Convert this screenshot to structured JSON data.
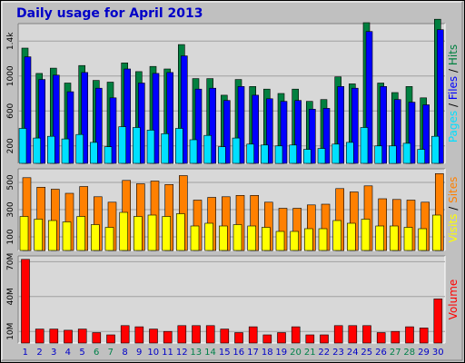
{
  "chart_data": {
    "type": "bar",
    "title": "Daily usage for April 2013",
    "categories": [
      "1",
      "2",
      "3",
      "4",
      "5",
      "6",
      "7",
      "8",
      "9",
      "10",
      "11",
      "12",
      "13",
      "14",
      "15",
      "16",
      "17",
      "18",
      "19",
      "20",
      "21",
      "22",
      "23",
      "24",
      "25",
      "26",
      "27",
      "28",
      "29",
      "30"
    ],
    "weekend_days": [
      "6",
      "7",
      "13",
      "14",
      "20",
      "21",
      "27",
      "28"
    ],
    "colors": {
      "background": "#c0c0c0",
      "plot_background": "#d8d8d8",
      "grid": "#a0a0a0",
      "title": "#0000c8",
      "pages": "#00e0ff",
      "files": "#0000ff",
      "hits": "#008040",
      "visits": "#ffff00",
      "sites": "#ff8000",
      "volume": "#ff0000",
      "weekend_label": "#00804a",
      "weekday_label": "#0000c8"
    },
    "panels": [
      {
        "id": "hits-files-pages",
        "legend": [
          {
            "text": "Pages",
            "color": "#00e0ff"
          },
          {
            "text": " / ",
            "color": "#000000"
          },
          {
            "text": "Files",
            "color": "#0000ff"
          },
          {
            "text": " / ",
            "color": "#000000"
          },
          {
            "text": "Hits",
            "color": "#008040"
          }
        ],
        "yticks": [
          "200",
          "600",
          "1000",
          "1.4k"
        ],
        "ytick_values": [
          200,
          600,
          1000,
          1400
        ],
        "ylim": [
          0,
          1600
        ],
        "series": [
          {
            "name": "Hits",
            "color": "#008040",
            "values": [
              1320,
              1030,
              1090,
              920,
              1120,
              950,
              930,
              1150,
              1050,
              1110,
              1080,
              1360,
              970,
              970,
              780,
              960,
              880,
              850,
              800,
              850,
              710,
              730,
              990,
              910,
              1610,
              920,
              810,
              880,
              750,
              1650
            ]
          },
          {
            "name": "Files",
            "color": "#0000ff",
            "values": [
              1220,
              960,
              1010,
              820,
              1040,
              860,
              750,
              1080,
              920,
              1030,
              1040,
              1230,
              850,
              860,
              720,
              880,
              780,
              740,
              710,
              720,
              620,
              630,
              880,
              860,
              1510,
              880,
              730,
              700,
              670,
              1530
            ]
          },
          {
            "name": "Pages",
            "color": "#00e0ff",
            "values": [
              400,
              290,
              310,
              280,
              330,
              240,
              190,
              420,
              410,
              380,
              340,
              400,
              270,
              320,
              190,
              290,
              220,
              210,
              200,
              210,
              160,
              170,
              220,
              240,
              410,
              200,
              200,
              230,
              160,
              310
            ]
          }
        ]
      },
      {
        "id": "sites-visits",
        "legend": [
          {
            "text": "Visits",
            "color": "#ffff00"
          },
          {
            "text": " / ",
            "color": "#000000"
          },
          {
            "text": "Sites",
            "color": "#ff8000"
          }
        ],
        "yticks": [
          "100",
          "300",
          "500"
        ],
        "ytick_values": [
          100,
          300,
          500
        ],
        "ylim": [
          0,
          600
        ],
        "series": [
          {
            "name": "Sites",
            "color": "#ff8000",
            "values": [
              535,
              465,
              450,
              420,
              470,
              395,
              355,
              515,
              490,
              510,
              485,
              550,
              370,
              390,
              395,
              405,
              405,
              355,
              310,
              310,
              335,
              340,
              455,
              430,
              475,
              380,
              375,
              370,
              355,
              565
            ]
          },
          {
            "name": "Visits",
            "color": "#ffff00",
            "values": [
              250,
              230,
              220,
              210,
              250,
              190,
              170,
              280,
              250,
              260,
              250,
              270,
              180,
              200,
              180,
              190,
              180,
              170,
              140,
              140,
              160,
              160,
              220,
              200,
              230,
              180,
              180,
              170,
              160,
              260
            ]
          }
        ]
      },
      {
        "id": "volume",
        "legend": [
          {
            "text": "Volume",
            "color": "#ff0000"
          }
        ],
        "yticks": [
          "10M",
          "40M",
          "70M"
        ],
        "ytick_values": [
          10,
          40,
          70
        ],
        "ylim": [
          0,
          75
        ],
        "series": [
          {
            "name": "Volume",
            "color": "#ff0000",
            "values": [
              72,
              12,
              12,
              11,
              12,
              9,
              7,
              15,
              14,
              12,
              10,
              15,
              15,
              15,
              12,
              9,
              14,
              7,
              9,
              14,
              7,
              7,
              15,
              15,
              15,
              9,
              10,
              14,
              13,
              38
            ]
          }
        ]
      }
    ]
  }
}
